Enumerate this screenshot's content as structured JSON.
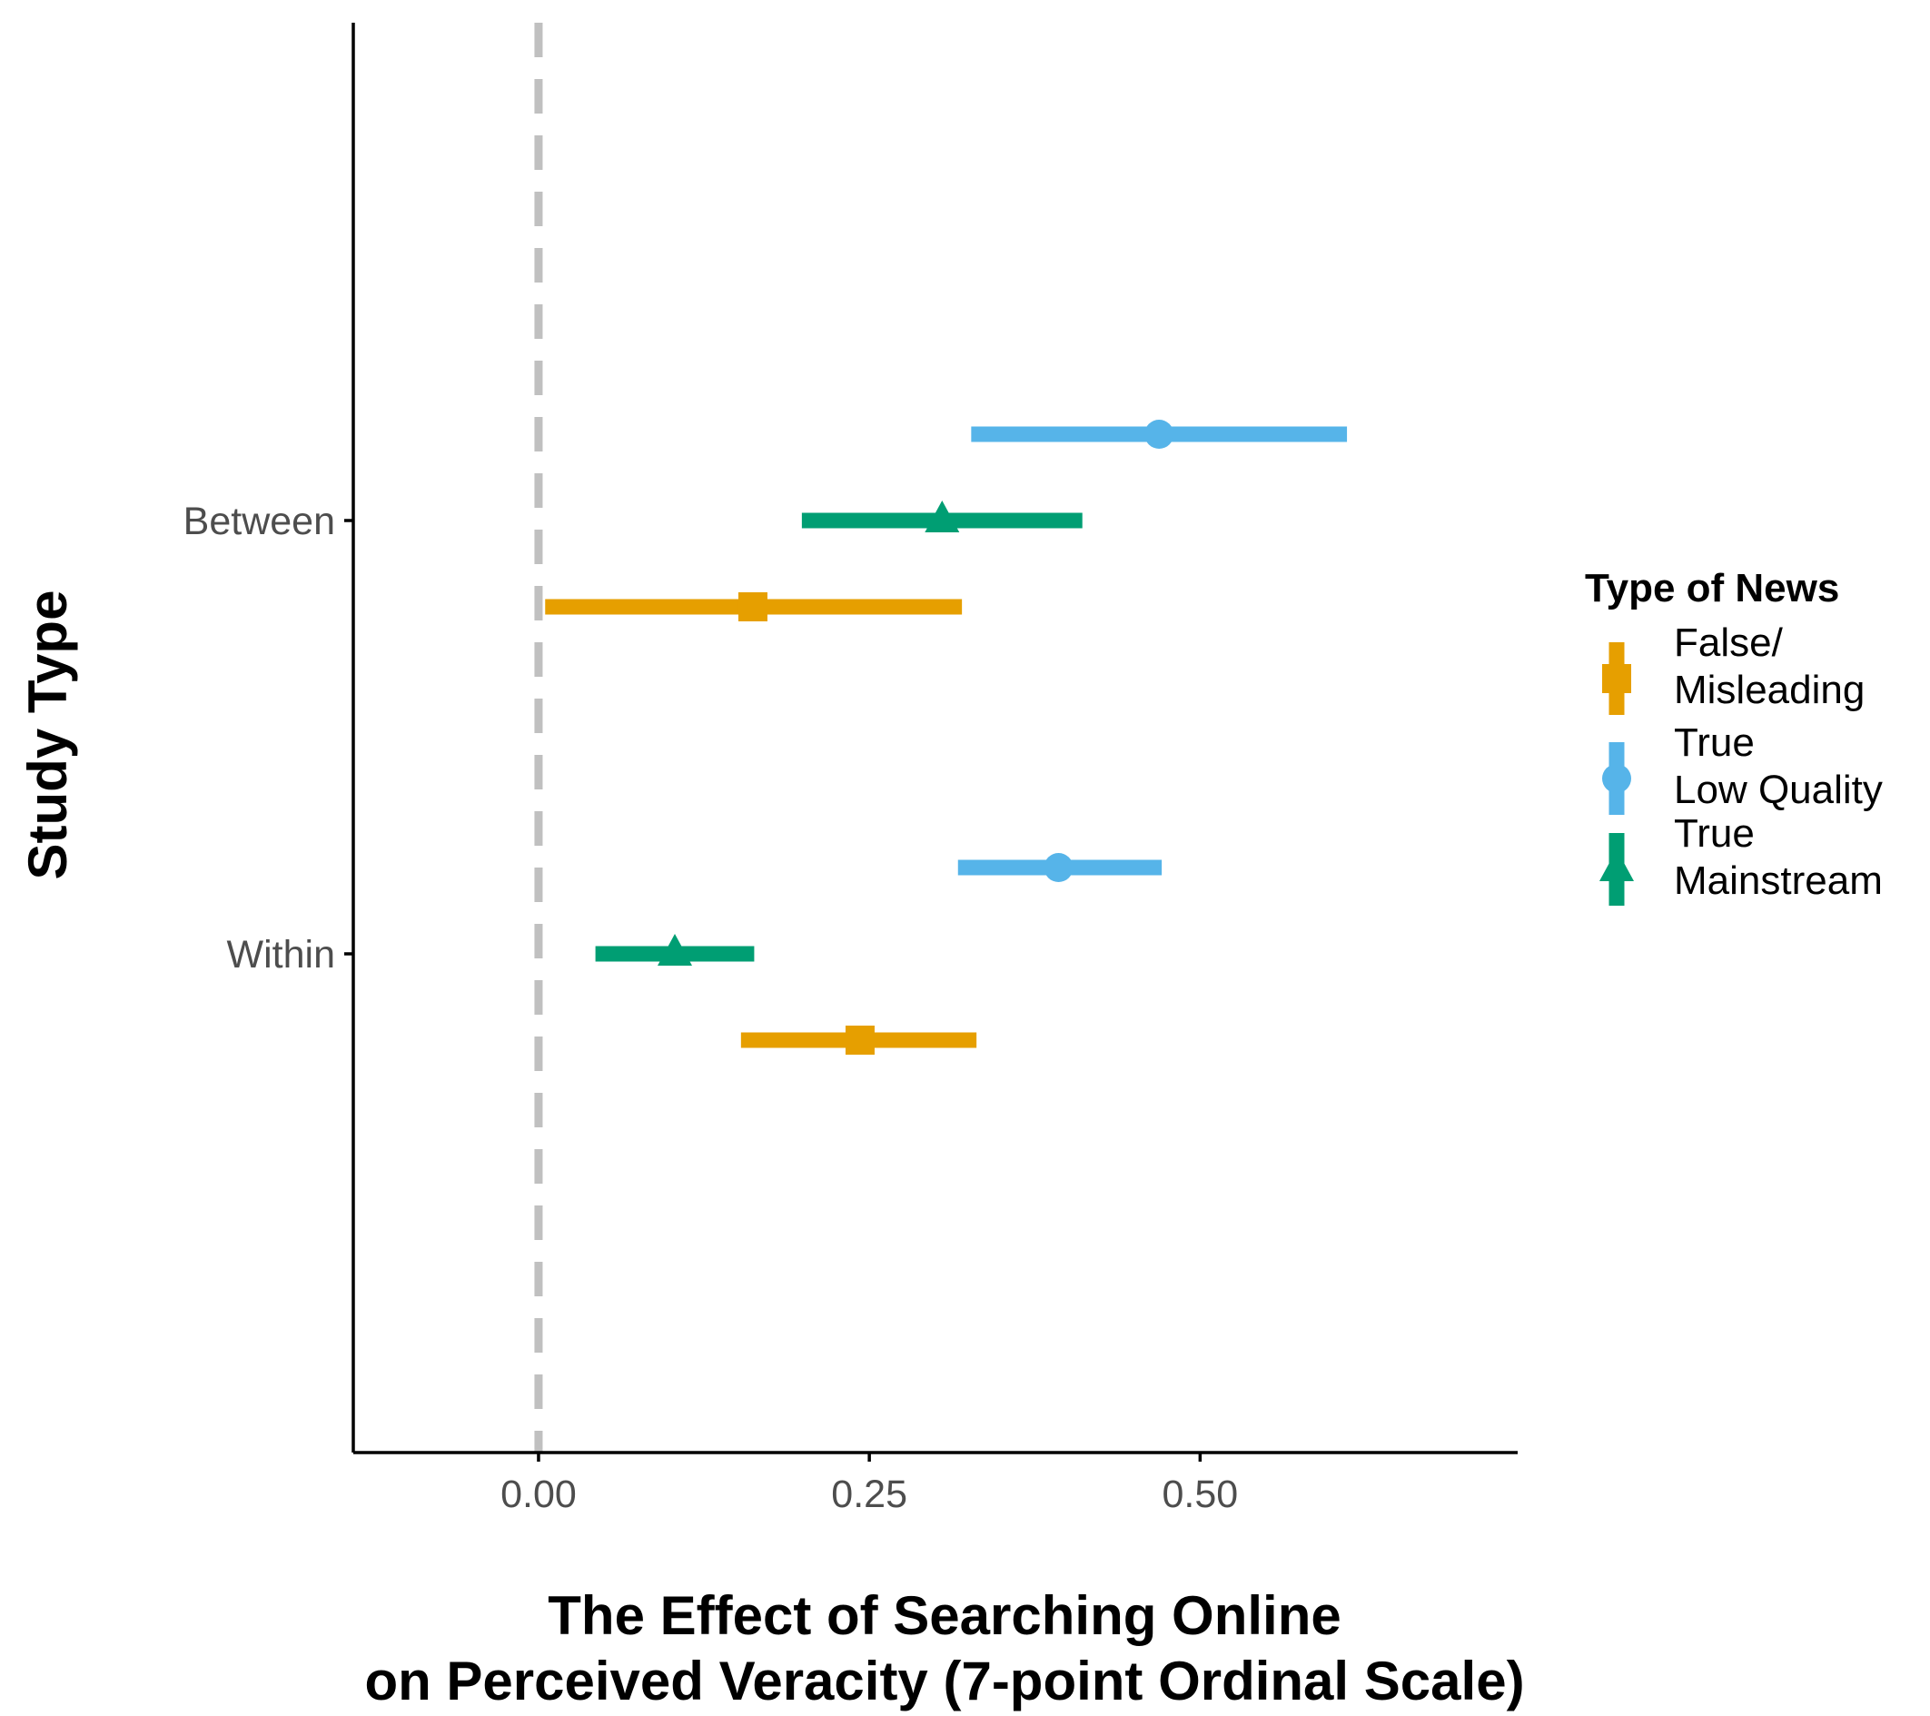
{
  "chart_data": {
    "type": "forest",
    "xlabel": [
      "The Effect of Searching Online",
      "on Perceived Veracity (7-point Ordinal Scale)"
    ],
    "ylabel": "Study Type",
    "xlim": [
      -0.14,
      0.74
    ],
    "x_ticks": [
      0.0,
      0.25,
      0.5
    ],
    "x_tick_labels": [
      "0.00",
      "0.25",
      "0.50"
    ],
    "categories": [
      "Between",
      "Within"
    ],
    "reference_line": {
      "x": 0,
      "style": "dashed",
      "color": "#c0c0c0"
    },
    "grid": false,
    "legend": {
      "title": "Type of News",
      "position": "right"
    },
    "series": [
      {
        "name": [
          "False/",
          "Misleading"
        ],
        "color": "#E69F00",
        "marker": "square",
        "points": [
          {
            "category": "Between",
            "estimate": 0.162,
            "lower": 0.005,
            "upper": 0.32
          },
          {
            "category": "Within",
            "estimate": 0.243,
            "lower": 0.153,
            "upper": 0.331
          }
        ]
      },
      {
        "name": [
          "True",
          "Low Quality"
        ],
        "color": "#56B4E9",
        "marker": "circle",
        "points": [
          {
            "category": "Between",
            "estimate": 0.469,
            "lower": 0.327,
            "upper": 0.611
          },
          {
            "category": "Within",
            "estimate": 0.393,
            "lower": 0.317,
            "upper": 0.471
          }
        ]
      },
      {
        "name": [
          "True",
          "Mainstream"
        ],
        "color": "#009E73",
        "marker": "triangle",
        "points": [
          {
            "category": "Between",
            "estimate": 0.305,
            "lower": 0.199,
            "upper": 0.411
          },
          {
            "category": "Within",
            "estimate": 0.103,
            "lower": 0.043,
            "upper": 0.163
          }
        ]
      }
    ]
  }
}
